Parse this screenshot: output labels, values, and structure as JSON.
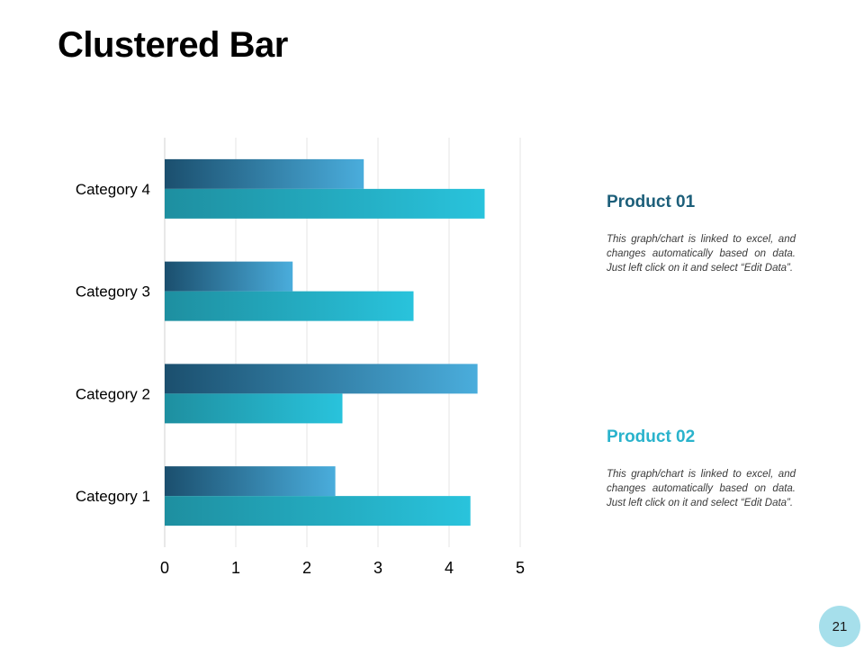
{
  "page": {
    "title": "Clustered Bar",
    "page_number": "21"
  },
  "legend": [
    {
      "title": "Product 01",
      "color": "#1d5f7a",
      "desc": "This graph/chart is linked to excel, and changes automatically based on data. Just left click on it and select “Edit Data”."
    },
    {
      "title": "Product 02",
      "color": "#2ab3cc",
      "desc": "This graph/chart is linked to excel, and changes automatically based on data. Just left click on it and select “Edit Data”."
    }
  ],
  "chart_data": {
    "type": "bar",
    "orientation": "horizontal",
    "title": "",
    "categories": [
      "Category 1",
      "Category 2",
      "Category 3",
      "Category 4"
    ],
    "series": [
      {
        "name": "Product 01",
        "values": [
          2.4,
          4.4,
          1.8,
          2.8
        ],
        "color_start": "#1b4f6e",
        "color_end": "#4aaddc"
      },
      {
        "name": "Product 02",
        "values": [
          4.3,
          2.5,
          3.5,
          4.5
        ],
        "color_start": "#1e8fa0",
        "color_end": "#29c3dc"
      }
    ],
    "xlim": [
      0,
      5
    ],
    "xticks": [
      "0",
      "1",
      "2",
      "3",
      "4",
      "5"
    ],
    "grid": true,
    "xlabel": "",
    "ylabel": ""
  }
}
